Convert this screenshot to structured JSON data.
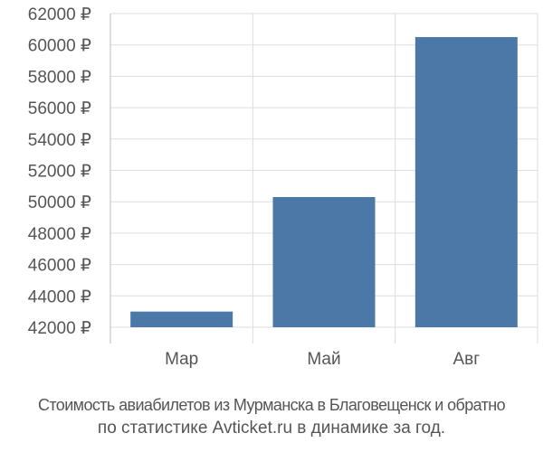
{
  "chart_data": {
    "type": "bar",
    "categories": [
      "Мар",
      "Май",
      "Авг"
    ],
    "values": [
      43000,
      50300,
      60500
    ],
    "ylim": [
      42000,
      62000
    ],
    "yticks": [
      "42000 ₽",
      "44000 ₽",
      "46000 ₽",
      "48000 ₽",
      "50000 ₽",
      "52000 ₽",
      "54000 ₽",
      "56000 ₽",
      "58000 ₽",
      "60000 ₽",
      "62000 ₽"
    ],
    "grid": true,
    "bar_color": "#4c78a8"
  },
  "caption": {
    "line1": "Стоимость авиабилетов из Мурманска в Благовещенск и обратно",
    "line2": "по статистике Avticket.ru в динамике за год."
  }
}
